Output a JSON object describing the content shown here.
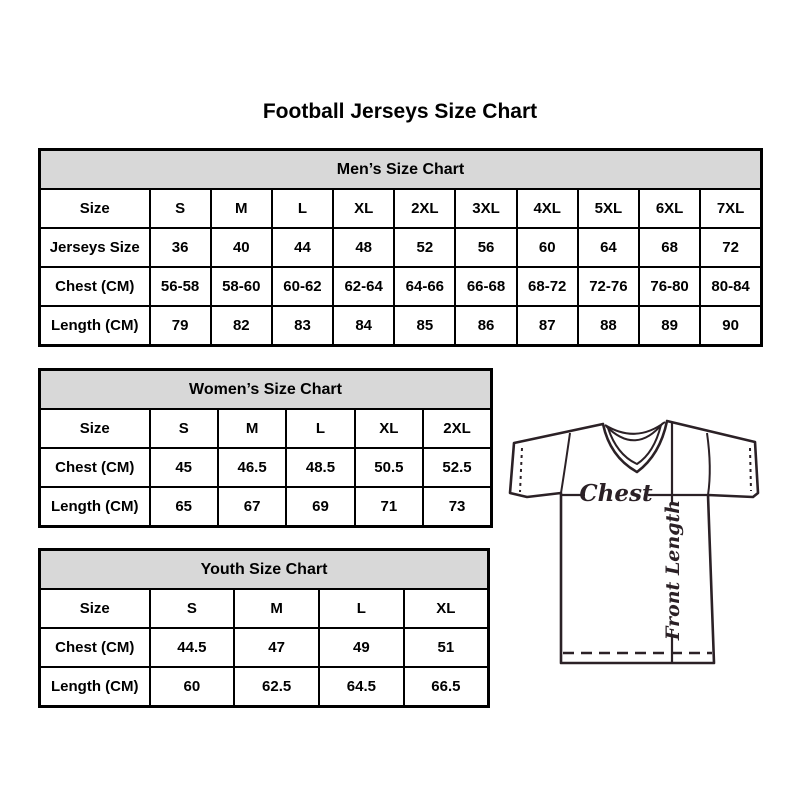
{
  "page": {
    "title": "Football Jerseys Size Chart"
  },
  "chart_data": [
    {
      "type": "table",
      "id": "mens",
      "title": "Men’s Size Chart",
      "header_row": [
        "Size",
        "S",
        "M",
        "L",
        "XL",
        "2XL",
        "3XL",
        "4XL",
        "5XL",
        "6XL",
        "7XL"
      ],
      "rows": [
        [
          "Jerseys Size",
          "36",
          "40",
          "44",
          "48",
          "52",
          "56",
          "60",
          "64",
          "68",
          "72"
        ],
        [
          "Chest (CM)",
          "56-58",
          "58-60",
          "60-62",
          "62-64",
          "64-66",
          "66-68",
          "68-72",
          "72-76",
          "76-80",
          "80-84"
        ],
        [
          "Length (CM)",
          "79",
          "82",
          "83",
          "84",
          "85",
          "86",
          "87",
          "88",
          "89",
          "90"
        ]
      ]
    },
    {
      "type": "table",
      "id": "womens",
      "title": "Women’s Size Chart",
      "header_row": [
        "Size",
        "S",
        "M",
        "L",
        "XL",
        "2XL"
      ],
      "rows": [
        [
          "Chest (CM)",
          "45",
          "46.5",
          "48.5",
          "50.5",
          "52.5"
        ],
        [
          "Length (CM)",
          "65",
          "67",
          "69",
          "71",
          "73"
        ]
      ]
    },
    {
      "type": "table",
      "id": "youth",
      "title": "Youth Size Chart",
      "header_row": [
        "Size",
        "S",
        "M",
        "L",
        "XL"
      ],
      "rows": [
        [
          "Chest (CM)",
          "44.5",
          "47",
          "49",
          "51"
        ],
        [
          "Length (CM)",
          "60",
          "62.5",
          "64.5",
          "66.5"
        ]
      ]
    }
  ],
  "diagram": {
    "chest_label": "Chest",
    "front_length_label": "Front Length"
  },
  "colors": {
    "table_header_bg": "#d8d8d8",
    "table_border": "#000000",
    "diagram_line": "#2b2126"
  }
}
